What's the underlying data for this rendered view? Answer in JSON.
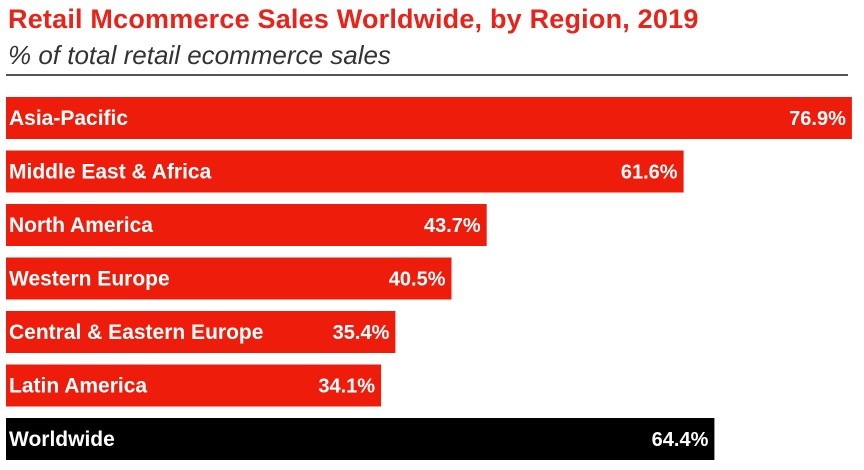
{
  "header": {
    "title": "Retail Mcommerce Sales Worldwide, by Region, 2019",
    "subtitle": "% of total retail ecommerce sales"
  },
  "colors": {
    "region_bar": "#ee1c0b",
    "total_bar": "#000000",
    "label_on_bar": "#ffffff",
    "label_outside": "#222222"
  },
  "chart_data": {
    "type": "bar",
    "orientation": "horizontal",
    "title": "Retail Mcommerce Sales Worldwide, by Region, 2019",
    "subtitle": "% of total retail ecommerce sales",
    "unit": "%",
    "xlim": [
      0,
      78
    ],
    "categories": [
      "Asia-Pacific",
      "Middle East & Africa",
      "North America",
      "Western Europe",
      "Central & Eastern Europe",
      "Latin America",
      "Worldwide"
    ],
    "values": [
      76.9,
      61.6,
      43.7,
      40.5,
      35.4,
      34.1,
      64.4
    ],
    "value_labels": [
      "76.9%",
      "61.6%",
      "43.7%",
      "40.5%",
      "35.4%",
      "34.1%",
      "64.4%"
    ],
    "highlight": [
      "Worldwide"
    ]
  }
}
